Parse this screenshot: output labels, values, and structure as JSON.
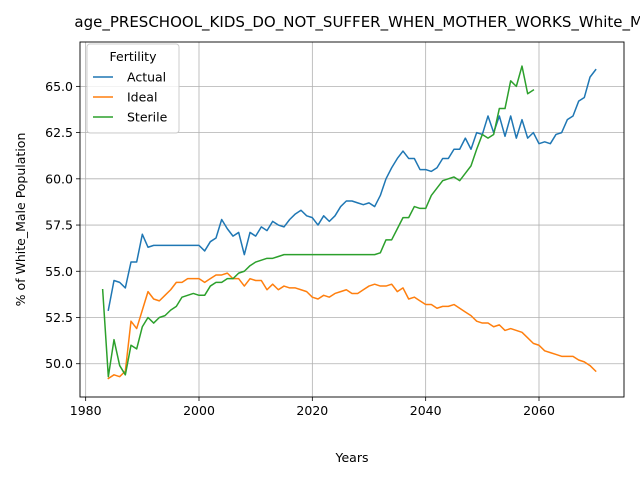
{
  "chart_data": {
    "type": "line",
    "title": "age_PRESCHOOL_KIDS_DO_NOT_SUFFER_WHEN_MOTHER_WORKS_White_Male",
    "xlabel": "Years",
    "ylabel": "% of White_Male Population",
    "xlim": [
      1979,
      2075
    ],
    "ylim": [
      48.2,
      67.4
    ],
    "xticks": [
      1980,
      2000,
      2020,
      2040,
      2060
    ],
    "yticks": [
      50.0,
      52.5,
      55.0,
      57.5,
      60.0,
      62.5,
      65.0
    ],
    "ytick_labels": [
      "50.0",
      "52.5",
      "55.0",
      "57.5",
      "60.0",
      "62.5",
      "65.0"
    ],
    "grid": true,
    "legend": {
      "title": "Fertility",
      "placement": "top-left"
    },
    "series": [
      {
        "name": "Actual",
        "color": "#1f77b4",
        "x": [
          1984,
          1985,
          1986,
          1987,
          1988,
          1989,
          1990,
          1991,
          1992,
          1993,
          1994,
          1995,
          1996,
          1997,
          1998,
          1999,
          2000,
          2001,
          2002,
          2003,
          2004,
          2005,
          2006,
          2007,
          2008,
          2009,
          2010,
          2011,
          2012,
          2013,
          2014,
          2015,
          2016,
          2017,
          2018,
          2019,
          2020,
          2021,
          2022,
          2023,
          2024,
          2025,
          2026,
          2027,
          2028,
          2029,
          2030,
          2031,
          2032,
          2033,
          2034,
          2035,
          2036,
          2037,
          2038,
          2039,
          2040,
          2041,
          2042,
          2043,
          2044,
          2045,
          2046,
          2047,
          2048,
          2049,
          2050,
          2051,
          2052,
          2053,
          2054,
          2055,
          2056,
          2057,
          2058,
          2059,
          2060,
          2061,
          2062,
          2063,
          2064,
          2065,
          2066,
          2067,
          2068,
          2069,
          2070
        ],
        "y": [
          52.9,
          54.5,
          54.4,
          54.1,
          55.5,
          55.5,
          57.0,
          56.3,
          56.4,
          56.4,
          56.4,
          56.4,
          56.4,
          56.4,
          56.4,
          56.4,
          56.4,
          56.1,
          56.6,
          56.8,
          57.8,
          57.3,
          56.9,
          57.1,
          55.9,
          57.1,
          56.9,
          57.4,
          57.2,
          57.7,
          57.5,
          57.4,
          57.8,
          58.1,
          58.3,
          58.0,
          57.9,
          57.5,
          58.0,
          57.7,
          58.0,
          58.5,
          58.8,
          58.8,
          58.7,
          58.6,
          58.7,
          58.5,
          59.1,
          60.0,
          60.6,
          61.1,
          61.5,
          61.1,
          61.1,
          60.5,
          60.5,
          60.4,
          60.6,
          61.1,
          61.1,
          61.6,
          61.6,
          62.2,
          61.6,
          62.5,
          62.4,
          63.4,
          62.5,
          63.4,
          62.3,
          63.4,
          62.2,
          63.2,
          62.2,
          62.5,
          61.9,
          62.0,
          61.9,
          62.4,
          62.5,
          63.2,
          63.4,
          64.2,
          64.4,
          65.5,
          65.9
        ]
      },
      {
        "name": "Ideal",
        "color": "#ff7f0e",
        "x": [
          1984,
          1985,
          1986,
          1987,
          1988,
          1989,
          1990,
          1991,
          1992,
          1993,
          1994,
          1995,
          1996,
          1997,
          1998,
          1999,
          2000,
          2001,
          2002,
          2003,
          2004,
          2005,
          2006,
          2007,
          2008,
          2009,
          2010,
          2011,
          2012,
          2013,
          2014,
          2015,
          2016,
          2017,
          2018,
          2019,
          2020,
          2021,
          2022,
          2023,
          2024,
          2025,
          2026,
          2027,
          2028,
          2029,
          2030,
          2031,
          2032,
          2033,
          2034,
          2035,
          2036,
          2037,
          2038,
          2039,
          2040,
          2041,
          2042,
          2043,
          2044,
          2045,
          2046,
          2047,
          2048,
          2049,
          2050,
          2051,
          2052,
          2053,
          2054,
          2055,
          2056,
          2057,
          2058,
          2059,
          2060,
          2061,
          2062,
          2063,
          2064,
          2065,
          2066,
          2067,
          2068,
          2069,
          2070
        ],
        "y": [
          49.2,
          49.4,
          49.3,
          49.6,
          52.3,
          51.9,
          52.9,
          53.9,
          53.5,
          53.4,
          53.7,
          54.0,
          54.4,
          54.4,
          54.6,
          54.6,
          54.6,
          54.4,
          54.6,
          54.8,
          54.8,
          54.9,
          54.6,
          54.6,
          54.2,
          54.6,
          54.5,
          54.5,
          54.0,
          54.3,
          54.0,
          54.2,
          54.1,
          54.1,
          54.0,
          53.9,
          53.6,
          53.5,
          53.7,
          53.6,
          53.8,
          53.9,
          54.0,
          53.8,
          53.8,
          54.0,
          54.2,
          54.3,
          54.2,
          54.2,
          54.3,
          53.9,
          54.1,
          53.5,
          53.6,
          53.4,
          53.2,
          53.2,
          53.0,
          53.1,
          53.1,
          53.2,
          53.0,
          52.8,
          52.6,
          52.3,
          52.2,
          52.2,
          52.0,
          52.1,
          51.8,
          51.9,
          51.8,
          51.7,
          51.4,
          51.1,
          51.0,
          50.7,
          50.6,
          50.5,
          50.4,
          50.4,
          50.4,
          50.2,
          50.1,
          49.9,
          49.6
        ]
      },
      {
        "name": "Sterile",
        "color": "#2ca02c",
        "x": [
          1983,
          1984,
          1985,
          1986,
          1987,
          1988,
          1989,
          1990,
          1991,
          1992,
          1993,
          1994,
          1995,
          1996,
          1997,
          1998,
          1999,
          2000,
          2001,
          2002,
          2003,
          2004,
          2005,
          2006,
          2007,
          2008,
          2009,
          2010,
          2011,
          2012,
          2013,
          2014,
          2015,
          2016,
          2017,
          2018,
          2019,
          2020,
          2021,
          2022,
          2023,
          2024,
          2025,
          2026,
          2027,
          2028,
          2029,
          2030,
          2031,
          2032,
          2033,
          2034,
          2035,
          2036,
          2037,
          2038,
          2039,
          2040,
          2041,
          2042,
          2043,
          2044,
          2045,
          2046,
          2047,
          2048,
          2049,
          2050,
          2051,
          2052,
          2053,
          2054,
          2055,
          2056,
          2057,
          2058,
          2059
        ],
        "y": [
          54.0,
          49.3,
          51.3,
          49.9,
          49.4,
          51.0,
          50.8,
          52.0,
          52.5,
          52.2,
          52.5,
          52.6,
          52.9,
          53.1,
          53.6,
          53.7,
          53.8,
          53.7,
          53.7,
          54.2,
          54.4,
          54.4,
          54.6,
          54.6,
          54.9,
          55.0,
          55.3,
          55.5,
          55.6,
          55.7,
          55.7,
          55.8,
          55.9,
          55.9,
          55.9,
          55.9,
          55.9,
          55.9,
          55.9,
          55.9,
          55.9,
          55.9,
          55.9,
          55.9,
          55.9,
          55.9,
          55.9,
          55.9,
          55.9,
          56.0,
          56.7,
          56.7,
          57.3,
          57.9,
          57.9,
          58.5,
          58.4,
          58.4,
          59.1,
          59.5,
          59.9,
          60.0,
          60.1,
          59.9,
          60.3,
          60.7,
          61.6,
          62.4,
          62.2,
          62.4,
          63.8,
          63.8,
          65.3,
          65.0,
          66.1,
          64.6,
          64.8
        ]
      }
    ]
  }
}
